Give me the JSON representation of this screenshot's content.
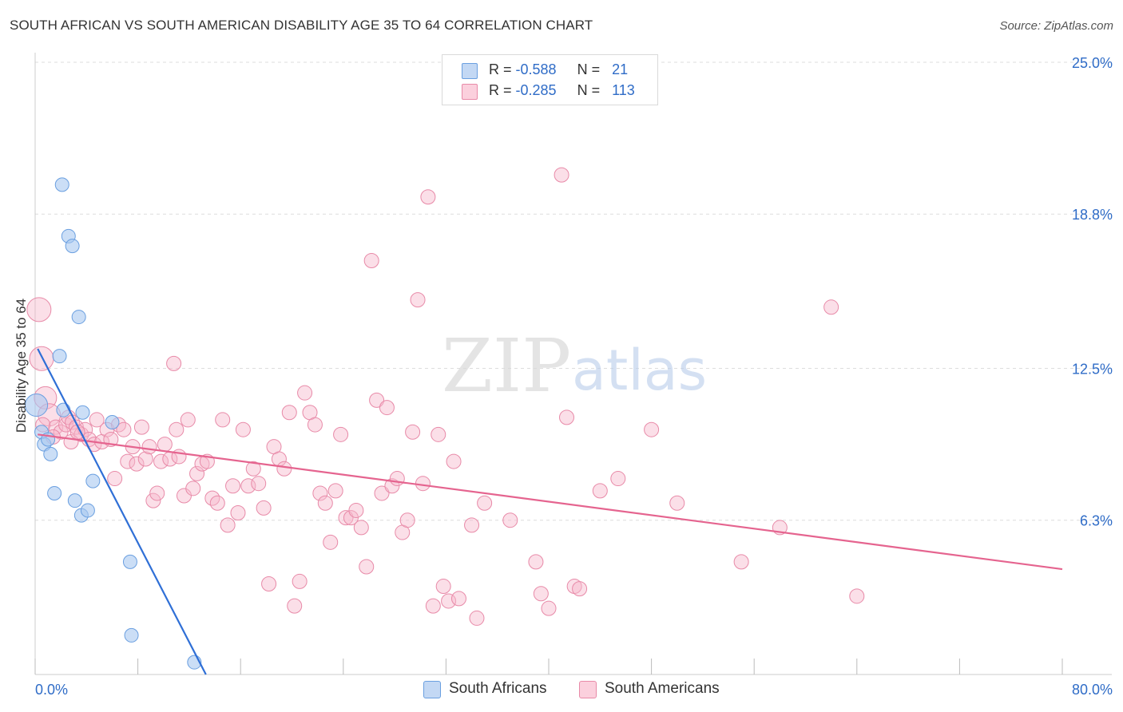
{
  "header": {
    "title": "SOUTH AFRICAN VS SOUTH AMERICAN DISABILITY AGE 35 TO 64 CORRELATION CHART",
    "source": "Source: ZipAtlas.com"
  },
  "watermark": {
    "zip": "ZIP",
    "atlas": "atlas"
  },
  "legend": {
    "rows": [
      {
        "r_label": "R = ",
        "r_value": "-0.588",
        "n_label": "N = ",
        "n_value": "21"
      },
      {
        "r_label": "R = ",
        "r_value": "-0.285",
        "n_label": "N = ",
        "n_value": "113"
      }
    ]
  },
  "bottom_legend": [
    "South Africans",
    "South Americans"
  ],
  "colors": {
    "blue_fill": "#a9c8f0",
    "blue_stroke": "#6a9fe0",
    "blue_line": "#2f6fd6",
    "pink_fill": "#f6b9cc",
    "pink_stroke": "#e88aa8",
    "pink_line": "#e5648f",
    "tick_label": "#2f6cc7",
    "grid": "#dddddd"
  },
  "chart_data": {
    "type": "scatter",
    "title": "SOUTH AFRICAN VS SOUTH AMERICAN DISABILITY AGE 35 TO 64 CORRELATION CHART",
    "xlabel": "",
    "ylabel": "Disability Age 35 to 64",
    "xlim": [
      0,
      80
    ],
    "ylim": [
      0,
      25
    ],
    "x_tick_labels": [
      "0.0%",
      "80.0%"
    ],
    "y_ticks": [
      6.3,
      12.5,
      18.8,
      25.0
    ],
    "y_tick_labels": [
      "6.3%",
      "12.5%",
      "18.8%",
      "25.0%"
    ],
    "grid": true,
    "legend_position": "top-center",
    "series": [
      {
        "name": "South Africans",
        "r": -0.588,
        "n": 21,
        "trend": {
          "x": [
            0.2,
            13.3
          ],
          "y": [
            13.3,
            0.0
          ]
        },
        "points": [
          [
            0.1,
            11.0
          ],
          [
            0.5,
            9.9
          ],
          [
            0.7,
            9.4
          ],
          [
            1.0,
            9.6
          ],
          [
            1.2,
            9.0
          ],
          [
            1.5,
            7.4
          ],
          [
            1.9,
            13.0
          ],
          [
            2.1,
            20.0
          ],
          [
            2.2,
            10.8
          ],
          [
            2.6,
            17.9
          ],
          [
            2.9,
            17.5
          ],
          [
            3.1,
            7.1
          ],
          [
            3.4,
            14.6
          ],
          [
            3.6,
            6.5
          ],
          [
            3.7,
            10.7
          ],
          [
            4.1,
            6.7
          ],
          [
            4.5,
            7.9
          ],
          [
            6.0,
            10.3
          ],
          [
            7.4,
            4.6
          ],
          [
            7.5,
            1.6
          ],
          [
            12.4,
            0.5
          ]
        ]
      },
      {
        "name": "South Americans",
        "r": -0.285,
        "n": 113,
        "trend": {
          "x": [
            0.2,
            80.0
          ],
          "y": [
            9.8,
            4.3
          ]
        },
        "points": [
          [
            0.3,
            14.9
          ],
          [
            0.5,
            12.9
          ],
          [
            0.8,
            11.3
          ],
          [
            1.1,
            10.6
          ],
          [
            1.6,
            10.1
          ],
          [
            2.0,
            9.9
          ],
          [
            2.4,
            10.2
          ],
          [
            2.6,
            10.5
          ],
          [
            2.9,
            10.3
          ],
          [
            3.2,
            10.1
          ],
          [
            3.6,
            9.8
          ],
          [
            3.9,
            10.0
          ],
          [
            4.2,
            9.6
          ],
          [
            4.6,
            9.4
          ],
          [
            4.8,
            10.4
          ],
          [
            5.2,
            9.5
          ],
          [
            5.6,
            10.0
          ],
          [
            5.9,
            9.6
          ],
          [
            6.2,
            8.0
          ],
          [
            6.5,
            10.2
          ],
          [
            6.9,
            10.0
          ],
          [
            7.2,
            8.7
          ],
          [
            7.6,
            9.3
          ],
          [
            7.9,
            8.6
          ],
          [
            8.3,
            10.1
          ],
          [
            8.6,
            8.8
          ],
          [
            8.9,
            9.3
          ],
          [
            9.2,
            7.1
          ],
          [
            9.5,
            7.4
          ],
          [
            9.8,
            8.7
          ],
          [
            10.1,
            9.4
          ],
          [
            10.5,
            8.8
          ],
          [
            10.8,
            12.7
          ],
          [
            11.2,
            8.9
          ],
          [
            11.6,
            7.3
          ],
          [
            11.9,
            10.4
          ],
          [
            12.3,
            7.6
          ],
          [
            12.6,
            8.2
          ],
          [
            13.0,
            8.6
          ],
          [
            13.4,
            8.7
          ],
          [
            13.8,
            7.2
          ],
          [
            14.2,
            7.0
          ],
          [
            14.6,
            10.4
          ],
          [
            15.0,
            6.1
          ],
          [
            15.4,
            7.7
          ],
          [
            15.8,
            6.6
          ],
          [
            16.2,
            10.0
          ],
          [
            16.6,
            7.7
          ],
          [
            17.0,
            8.4
          ],
          [
            17.4,
            7.8
          ],
          [
            17.8,
            6.8
          ],
          [
            18.2,
            3.7
          ],
          [
            18.6,
            9.3
          ],
          [
            19.0,
            8.8
          ],
          [
            19.4,
            8.4
          ],
          [
            19.8,
            10.7
          ],
          [
            20.2,
            2.8
          ],
          [
            20.6,
            3.8
          ],
          [
            21.0,
            11.5
          ],
          [
            21.4,
            10.7
          ],
          [
            21.8,
            10.2
          ],
          [
            22.2,
            7.4
          ],
          [
            22.6,
            7.0
          ],
          [
            23.0,
            5.4
          ],
          [
            23.4,
            7.5
          ],
          [
            23.8,
            9.8
          ],
          [
            24.2,
            6.4
          ],
          [
            24.6,
            6.4
          ],
          [
            25.0,
            6.7
          ],
          [
            25.4,
            6.0
          ],
          [
            25.8,
            4.4
          ],
          [
            26.2,
            16.9
          ],
          [
            26.6,
            11.2
          ],
          [
            27.0,
            7.4
          ],
          [
            27.4,
            10.9
          ],
          [
            27.8,
            7.7
          ],
          [
            28.2,
            8.0
          ],
          [
            28.6,
            5.8
          ],
          [
            29.0,
            6.3
          ],
          [
            29.4,
            9.9
          ],
          [
            29.8,
            15.3
          ],
          [
            30.2,
            7.8
          ],
          [
            30.6,
            19.5
          ],
          [
            31.0,
            2.8
          ],
          [
            31.4,
            9.8
          ],
          [
            31.8,
            3.6
          ],
          [
            32.2,
            3.0
          ],
          [
            32.6,
            8.7
          ],
          [
            33.0,
            3.1
          ],
          [
            34.0,
            6.1
          ],
          [
            34.4,
            2.3
          ],
          [
            35.0,
            7.0
          ],
          [
            37.0,
            6.3
          ],
          [
            39.0,
            4.6
          ],
          [
            39.4,
            3.3
          ],
          [
            40.0,
            2.7
          ],
          [
            41.0,
            20.4
          ],
          [
            41.4,
            10.5
          ],
          [
            42.0,
            3.6
          ],
          [
            42.4,
            3.5
          ],
          [
            44.0,
            7.5
          ],
          [
            45.4,
            8.0
          ],
          [
            48.0,
            10.0
          ],
          [
            50.0,
            7.0
          ],
          [
            55.0,
            4.6
          ],
          [
            58.0,
            6.0
          ],
          [
            62.0,
            15.0
          ],
          [
            64.0,
            3.2
          ],
          [
            0.6,
            10.2
          ],
          [
            1.4,
            9.7
          ],
          [
            2.8,
            9.5
          ],
          [
            3.3,
            9.9
          ],
          [
            11.0,
            10.0
          ]
        ]
      }
    ]
  }
}
